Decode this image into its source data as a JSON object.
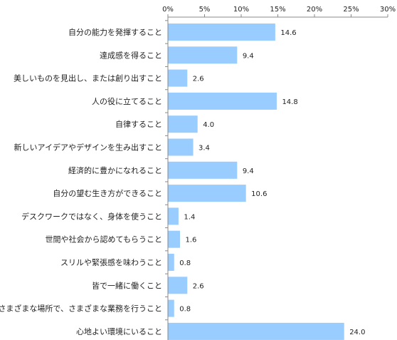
{
  "chart_data": {
    "type": "bar",
    "orientation": "horizontal",
    "title": "",
    "xlabel": "",
    "ylabel": "",
    "xlim": [
      0,
      30
    ],
    "ticks": [
      0,
      5,
      10,
      15,
      20,
      25,
      30
    ],
    "tick_labels": [
      "0%",
      "5%",
      "10%",
      "15%",
      "20%",
      "25%",
      "30%"
    ],
    "tick_position": "top",
    "grid": false,
    "legend": "none",
    "bar_color": "#99ccff",
    "categories": [
      "自分の能力を発揮すること",
      "達成感を得ること",
      "美しいものを見出し、または創り出すこと",
      "人の役に立てること",
      "自律すること",
      "新しいアイデアやデザインを生み出すこと",
      "経済的に豊かになれること",
      "自分の望む生き方ができること",
      "デスクワークではなく、身体を使うこと",
      "世間や社会から認めてもらうこと",
      "スリルや緊張感を味わうこと",
      "皆で一緒に働くこと",
      "さまざまな場所で、さまざまな業務を行うこと",
      "心地よい環境にいること"
    ],
    "values": [
      14.6,
      9.4,
      2.6,
      14.8,
      4.0,
      3.4,
      9.4,
      10.6,
      1.4,
      1.6,
      0.8,
      2.6,
      0.8,
      24.0
    ],
    "value_labels": [
      "14.6",
      "9.4",
      "2.6",
      "14.8",
      "4.0",
      "3.4",
      "9.4",
      "10.6",
      "1.4",
      "1.6",
      "0.8",
      "2.6",
      "0.8",
      "24.0"
    ]
  }
}
